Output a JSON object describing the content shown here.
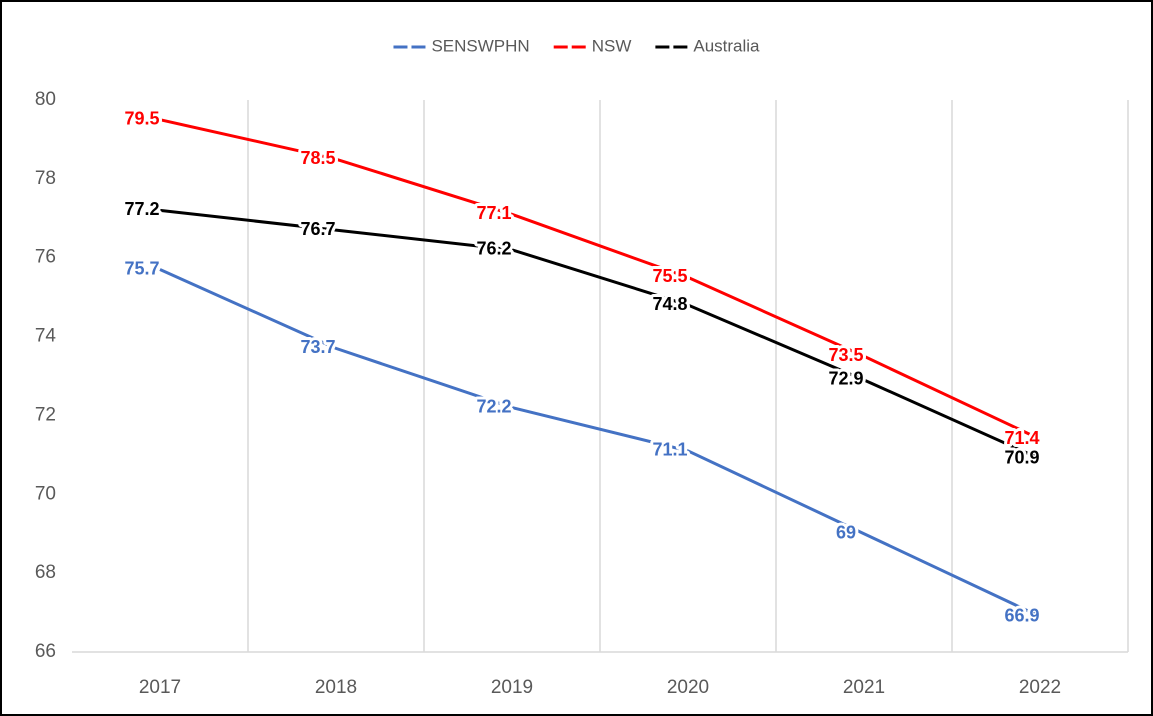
{
  "chart_data": {
    "type": "line",
    "categories": [
      "2017",
      "2018",
      "2019",
      "2020",
      "2021",
      "2022"
    ],
    "series": [
      {
        "name": "SENSWPHN",
        "color": "#4472c4",
        "values": [
          75.7,
          73.7,
          72.2,
          71.1,
          69,
          66.9
        ]
      },
      {
        "name": "NSW",
        "color": "#ff0000",
        "values": [
          79.5,
          78.5,
          77.1,
          75.5,
          73.5,
          71.4
        ]
      },
      {
        "name": "Australia",
        "color": "#000000",
        "values": [
          77.2,
          76.7,
          76.2,
          74.8,
          72.9,
          70.9
        ]
      }
    ],
    "ylim": [
      66,
      80
    ],
    "yticks": [
      66,
      68,
      70,
      72,
      74,
      76,
      78,
      80
    ],
    "grid": "vertical",
    "legend": "top",
    "data_labels": true
  }
}
